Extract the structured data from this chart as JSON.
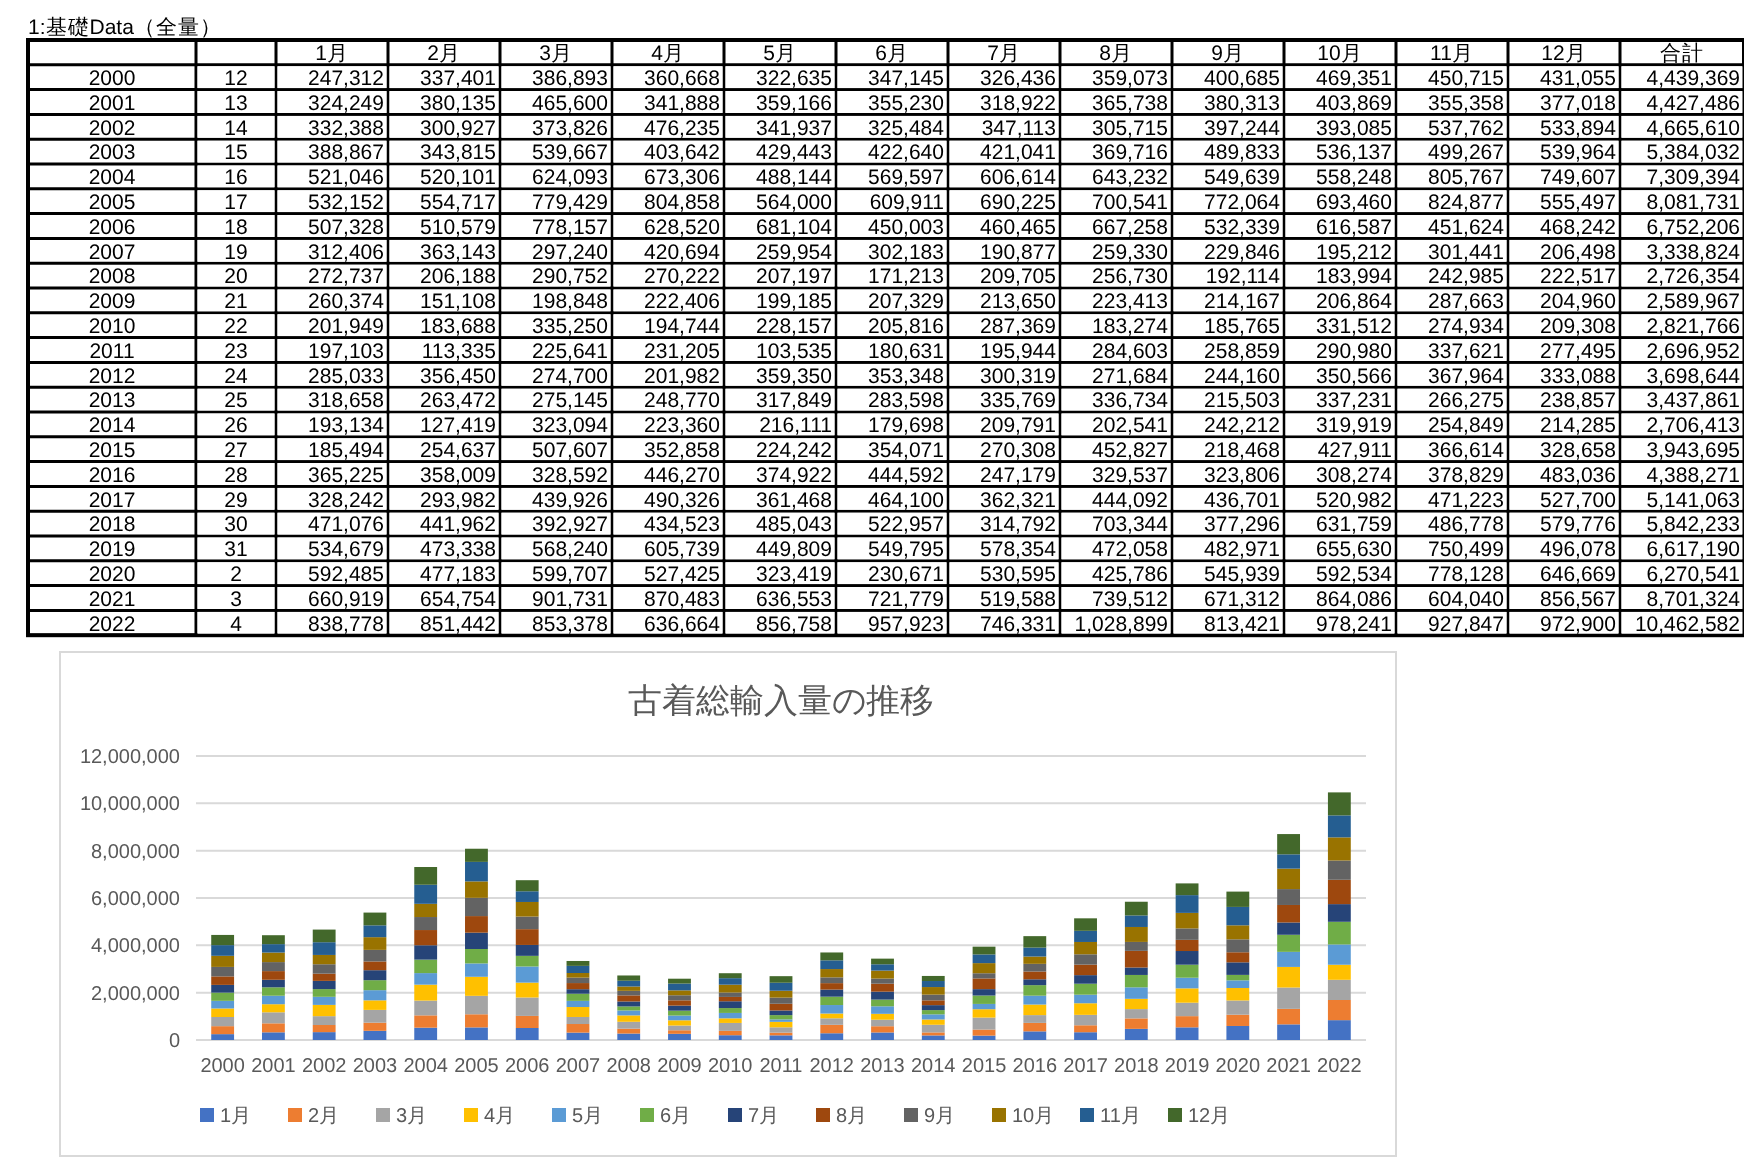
{
  "chart_data": [
    {
      "type": "heatmap",
      "title": "1:基礎Data（全量）",
      "categories": [
        null,
        "1月",
        "2月",
        "3月",
        "4月",
        "5月",
        "6月",
        "7月",
        "8月",
        "9月",
        "10月",
        "11月",
        "12月",
        "合計"
      ],
      "y_categories": [
        "2000",
        "2001",
        "2002",
        "2003",
        "2004",
        "2005",
        "2006",
        "2007",
        "2008",
        "2009",
        "2010",
        "2011",
        "2012",
        "2013",
        "2014",
        "2015",
        "2016",
        "2017",
        "2018",
        "2019",
        "2020",
        "2021",
        "2022"
      ],
      "cells": [
        [
          12,
          247312,
          337401,
          386893,
          360668,
          322635,
          347145,
          326436,
          359073,
          400685,
          469351,
          450715,
          431055,
          4439369
        ],
        [
          13,
          324249,
          380135,
          465600,
          341888,
          359166,
          355230,
          318922,
          365738,
          380313,
          403869,
          355358,
          377018,
          4427486
        ],
        [
          14,
          332388,
          300927,
          373826,
          476235,
          341937,
          325484,
          347113,
          305715,
          397244,
          393085,
          537762,
          533894,
          4665610
        ],
        [
          15,
          388867,
          343815,
          539667,
          403642,
          429443,
          422640,
          421041,
          369716,
          489833,
          536137,
          499267,
          539964,
          5384032
        ],
        [
          16,
          521046,
          520101,
          624093,
          673306,
          488144,
          569597,
          606614,
          643232,
          549639,
          558248,
          805767,
          749607,
          7309394
        ],
        [
          17,
          532152,
          554717,
          779429,
          804858,
          564000,
          609911,
          690225,
          700541,
          772064,
          693460,
          824877,
          555497,
          8081731
        ],
        [
          18,
          507328,
          510579,
          778157,
          628520,
          681104,
          450003,
          460465,
          667258,
          532339,
          616587,
          451624,
          468242,
          6752206
        ],
        [
          19,
          312406,
          363143,
          297240,
          420694,
          259954,
          302183,
          190877,
          259330,
          229846,
          195212,
          301441,
          206498,
          3338824
        ],
        [
          20,
          272737,
          206188,
          290752,
          270222,
          207197,
          171213,
          209705,
          256730,
          192114,
          183994,
          242985,
          222517,
          2726354
        ],
        [
          21,
          260374,
          151108,
          198848,
          222406,
          199185,
          207329,
          213650,
          223413,
          214167,
          206864,
          287663,
          204960,
          2589967
        ],
        [
          22,
          201949,
          183688,
          335250,
          194744,
          228157,
          205816,
          287369,
          183274,
          185765,
          331512,
          274934,
          209308,
          2821766
        ],
        [
          23,
          197103,
          113335,
          225641,
          231205,
          103535,
          180631,
          195944,
          284603,
          258859,
          290980,
          337621,
          277495,
          2696952
        ],
        [
          24,
          285033,
          356450,
          274700,
          201982,
          359350,
          353348,
          300319,
          271684,
          244160,
          350566,
          367964,
          333088,
          3698644
        ],
        [
          25,
          318658,
          263472,
          275145,
          248770,
          317849,
          283598,
          335769,
          336734,
          215503,
          337231,
          266275,
          238857,
          3437861
        ],
        [
          26,
          193134,
          127419,
          323094,
          223360,
          216111,
          179698,
          209791,
          202541,
          242212,
          319919,
          254849,
          214285,
          2706413
        ],
        [
          27,
          185494,
          254637,
          507607,
          352858,
          224242,
          354071,
          270308,
          452827,
          218468,
          427911,
          366614,
          328658,
          3943695
        ],
        [
          28,
          365225,
          358009,
          328592,
          446270,
          374922,
          444592,
          247179,
          329537,
          323806,
          308274,
          378829,
          483036,
          4388271
        ],
        [
          29,
          328242,
          293982,
          439926,
          490326,
          361468,
          464100,
          362321,
          444092,
          436701,
          520982,
          471223,
          527700,
          5141063
        ],
        [
          30,
          471076,
          441962,
          392927,
          434523,
          485043,
          522957,
          314792,
          703344,
          377296,
          631759,
          486778,
          579776,
          5842233
        ],
        [
          31,
          534679,
          473338,
          568240,
          605739,
          449809,
          549795,
          578354,
          472058,
          482971,
          655630,
          750499,
          496078,
          6617190
        ],
        [
          2,
          592485,
          477183,
          599707,
          527425,
          323419,
          230671,
          530595,
          425786,
          545939,
          592534,
          778128,
          646669,
          6270541
        ],
        [
          3,
          660919,
          654754,
          901731,
          870483,
          636553,
          721779,
          519588,
          739512,
          671312,
          864086,
          604040,
          856567,
          8701324
        ],
        [
          4,
          838778,
          851442,
          853378,
          636664,
          856758,
          957923,
          746331,
          1028899,
          813421,
          978241,
          927847,
          972900,
          10462582
        ]
      ],
      "cell_labels": [
        [
          "12",
          "247,312",
          "337,401",
          "386,893",
          "360,668",
          "322,635",
          "347,145",
          "326,436",
          "359,073",
          "400,685",
          "469,351",
          "450,715",
          "431,055",
          "4,439,369"
        ],
        [
          "13",
          "324,249",
          "380,135",
          "465,600",
          "341,888",
          "359,166",
          "355,230",
          "318,922",
          "365,738",
          "380,313",
          "403,869",
          "355,358",
          "377,018",
          "4,427,486"
        ],
        [
          "14",
          "332,388",
          "300,927",
          "373,826",
          "476,235",
          "341,937",
          "325,484",
          "347,113",
          "305,715",
          "397,244",
          "393,085",
          "537,762",
          "533,894",
          "4,665,610"
        ],
        [
          "15",
          "388,867",
          "343,815",
          "539,667",
          "403,642",
          "429,443",
          "422,640",
          "421,041",
          "369,716",
          "489,833",
          "536,137",
          "499,267",
          "539,964",
          "5,384,032"
        ],
        [
          "16",
          "521,046",
          "520,101",
          "624,093",
          "673,306",
          "488,144",
          "569,597",
          "606,614",
          "643,232",
          "549,639",
          "558,248",
          "805,767",
          "749,607",
          "7,309,394"
        ],
        [
          "17",
          "532,152",
          "554,717",
          "779,429",
          "804,858",
          "564,000",
          "609,911",
          "690,225",
          "700,541",
          "772,064",
          "693,460",
          "824,877",
          "555,497",
          "8,081,731"
        ],
        [
          "18",
          "507,328",
          "510,579",
          "778,157",
          "628,520",
          "681,104",
          "450,003",
          "460,465",
          "667,258",
          "532,339",
          "616,587",
          "451,624",
          "468,242",
          "6,752,206"
        ],
        [
          "19",
          "312,406",
          "363,143",
          "297,240",
          "420,694",
          "259,954",
          "302,183",
          "190,877",
          "259,330",
          "229,846",
          "195,212",
          "301,441",
          "206,498",
          "3,338,824"
        ],
        [
          "20",
          "272,737",
          "206,188",
          "290,752",
          "270,222",
          "207,197",
          "171,213",
          "209,705",
          "256,730",
          "192,114",
          "183,994",
          "242,985",
          "222,517",
          "2,726,354"
        ],
        [
          "21",
          "260,374",
          "151,108",
          "198,848",
          "222,406",
          "199,185",
          "207,329",
          "213,650",
          "223,413",
          "214,167",
          "206,864",
          "287,663",
          "204,960",
          "2,589,967"
        ],
        [
          "22",
          "201,949",
          "183,688",
          "335,250",
          "194,744",
          "228,157",
          "205,816",
          "287,369",
          "183,274",
          "185,765",
          "331,512",
          "274,934",
          "209,308",
          "2,821,766"
        ],
        [
          "23",
          "197,103",
          "113,335",
          "225,641",
          "231,205",
          "103,535",
          "180,631",
          "195,944",
          "284,603",
          "258,859",
          "290,980",
          "337,621",
          "277,495",
          "2,696,952"
        ],
        [
          "24",
          "285,033",
          "356,450",
          "274,700",
          "201,982",
          "359,350",
          "353,348",
          "300,319",
          "271,684",
          "244,160",
          "350,566",
          "367,964",
          "333,088",
          "3,698,644"
        ],
        [
          "25",
          "318,658",
          "263,472",
          "275,145",
          "248,770",
          "317,849",
          "283,598",
          "335,769",
          "336,734",
          "215,503",
          "337,231",
          "266,275",
          "238,857",
          "3,437,861"
        ],
        [
          "26",
          "193,134",
          "127,419",
          "323,094",
          "223,360",
          "216,111",
          "179,698",
          "209,791",
          "202,541",
          "242,212",
          "319,919",
          "254,849",
          "214,285",
          "2,706,413"
        ],
        [
          "27",
          "185,494",
          "254,637",
          "507,607",
          "352,858",
          "224,242",
          "354,071",
          "270,308",
          "452,827",
          "218,468",
          "427,911",
          "366,614",
          "328,658",
          "3,943,695"
        ],
        [
          "28",
          "365,225",
          "358,009",
          "328,592",
          "446,270",
          "374,922",
          "444,592",
          "247,179",
          "329,537",
          "323,806",
          "308,274",
          "378,829",
          "483,036",
          "4,388,271"
        ],
        [
          "29",
          "328,242",
          "293,982",
          "439,926",
          "490,326",
          "361,468",
          "464,100",
          "362,321",
          "444,092",
          "436,701",
          "520,982",
          "471,223",
          "527,700",
          "5,141,063"
        ],
        [
          "30",
          "471,076",
          "441,962",
          "392,927",
          "434,523",
          "485,043",
          "522,957",
          "314,792",
          "703,344",
          "377,296",
          "631,759",
          "486,778",
          "579,776",
          "5,842,233"
        ],
        [
          "31",
          "534,679",
          "473,338",
          "568,240",
          "605,739",
          "449,809",
          "549,795",
          "578,354",
          "472,058",
          "482,971",
          "655,630",
          "750,499",
          "496,078",
          "6,617,190"
        ],
        [
          "2",
          "592,485",
          "477,183",
          "599,707",
          "527,425",
          "323,419",
          "230,671",
          "530,595",
          "425,786",
          "545,939",
          "592,534",
          "778,128",
          "646,669",
          "6,270,541"
        ],
        [
          "3",
          "660,919",
          "654,754",
          "901,731",
          "870,483",
          "636,553",
          "721,779",
          "519,588",
          "739,512",
          "671,312",
          "864,086",
          "604,040",
          "856,567",
          "8,701,324"
        ],
        [
          "4",
          "838,778",
          "851,442",
          "853,378",
          "636,664",
          "856,758",
          "957,923",
          "746,331",
          "1,028,899",
          "813,421",
          "978,241",
          "927,847",
          "972,900",
          "10,462,582"
        ]
      ]
    },
    {
      "type": "bar",
      "stacked": true,
      "title": "古着総輸入量の推移",
      "categories": [
        "2000",
        "2001",
        "2002",
        "2003",
        "2004",
        "2005",
        "2006",
        "2007",
        "2008",
        "2009",
        "2010",
        "2011",
        "2012",
        "2013",
        "2014",
        "2015",
        "2016",
        "2017",
        "2018",
        "2019",
        "2020",
        "2021",
        "2022"
      ],
      "series": [
        {
          "name": "1月",
          "color": "#4472c4",
          "values": [
            247312,
            324249,
            332388,
            388867,
            521046,
            532152,
            507328,
            312406,
            272737,
            260374,
            201949,
            197103,
            285033,
            318658,
            193134,
            185494,
            365225,
            328242,
            471076,
            534679,
            592485,
            660919,
            838778
          ]
        },
        {
          "name": "2月",
          "color": "#ed7d31",
          "values": [
            337401,
            380135,
            300927,
            343815,
            520101,
            554717,
            510579,
            363143,
            206188,
            151108,
            183688,
            113335,
            356450,
            263472,
            127419,
            254637,
            358009,
            293982,
            441962,
            473338,
            477183,
            654754,
            851442
          ]
        },
        {
          "name": "3月",
          "color": "#a5a5a5",
          "values": [
            386893,
            465600,
            373826,
            539667,
            624093,
            779429,
            778157,
            297240,
            290752,
            198848,
            335250,
            225641,
            274700,
            275145,
            323094,
            507607,
            328592,
            439926,
            392927,
            568240,
            599707,
            901731,
            853378
          ]
        },
        {
          "name": "4月",
          "color": "#ffc000",
          "values": [
            360668,
            341888,
            476235,
            403642,
            673306,
            804858,
            628520,
            420694,
            270222,
            222406,
            194744,
            231205,
            201982,
            248770,
            223360,
            352858,
            446270,
            490326,
            434523,
            605739,
            527425,
            870483,
            636664
          ]
        },
        {
          "name": "5月",
          "color": "#5b9bd5",
          "values": [
            322635,
            359166,
            341937,
            429443,
            488144,
            564000,
            681104,
            259954,
            207197,
            199185,
            228157,
            103535,
            359350,
            317849,
            216111,
            224242,
            374922,
            361468,
            485043,
            449809,
            323419,
            636553,
            856758
          ]
        },
        {
          "name": "6月",
          "color": "#70ad47",
          "values": [
            347145,
            355230,
            325484,
            422640,
            569597,
            609911,
            450003,
            302183,
            171213,
            207329,
            205816,
            180631,
            353348,
            283598,
            179698,
            354071,
            444592,
            464100,
            522957,
            549795,
            230671,
            721779,
            957923
          ]
        },
        {
          "name": "7月",
          "color": "#264478",
          "values": [
            326436,
            318922,
            347113,
            421041,
            606614,
            690225,
            460465,
            190877,
            209705,
            213650,
            287369,
            195944,
            300319,
            335769,
            209791,
            270308,
            247179,
            362321,
            314792,
            578354,
            530595,
            519588,
            746331
          ]
        },
        {
          "name": "8月",
          "color": "#9e480e",
          "values": [
            359073,
            365738,
            305715,
            369716,
            643232,
            700541,
            667258,
            259330,
            256730,
            223413,
            183274,
            284603,
            271684,
            336734,
            202541,
            452827,
            329537,
            444092,
            703344,
            472058,
            425786,
            739512,
            1028899
          ]
        },
        {
          "name": "9月",
          "color": "#636363",
          "values": [
            400685,
            380313,
            397244,
            489833,
            549639,
            772064,
            532339,
            229846,
            192114,
            214167,
            185765,
            258859,
            244160,
            215503,
            242212,
            218468,
            323806,
            436701,
            377296,
            482971,
            545939,
            671312,
            813421
          ]
        },
        {
          "name": "10月",
          "color": "#997300",
          "values": [
            469351,
            403869,
            393085,
            536137,
            558248,
            693460,
            616587,
            195212,
            183994,
            206864,
            331512,
            290980,
            350566,
            337231,
            319919,
            427911,
            308274,
            520982,
            631759,
            655630,
            592534,
            864086,
            978241
          ]
        },
        {
          "name": "11月",
          "color": "#255e91",
          "values": [
            450715,
            355358,
            537762,
            499267,
            805767,
            824877,
            451624,
            301441,
            242985,
            287663,
            274934,
            337621,
            367964,
            266275,
            254849,
            366614,
            378829,
            471223,
            486778,
            750499,
            778128,
            604040,
            927847
          ]
        },
        {
          "name": "12月",
          "color": "#43682b",
          "values": [
            431055,
            377018,
            533894,
            539964,
            749607,
            555497,
            468242,
            206498,
            222517,
            204960,
            209308,
            277495,
            333088,
            238857,
            214285,
            328658,
            483036,
            527700,
            579776,
            496078,
            646669,
            856567,
            972900
          ]
        }
      ],
      "ylim": [
        0,
        12000000
      ],
      "yticks": [
        {
          "value": 0,
          "label": "0"
        },
        {
          "value": 2000000,
          "label": "2,000,000"
        },
        {
          "value": 4000000,
          "label": "4,000,000"
        },
        {
          "value": 6000000,
          "label": "6,000,000"
        },
        {
          "value": 8000000,
          "label": "8,000,000"
        },
        {
          "value": 10000000,
          "label": "10,000,000"
        },
        {
          "value": 12000000,
          "label": "12,000,000"
        }
      ],
      "grid": "y",
      "legend": "bottom"
    }
  ]
}
